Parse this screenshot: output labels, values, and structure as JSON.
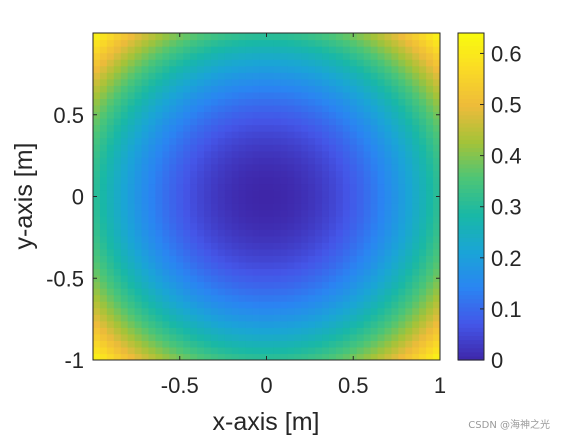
{
  "chart_data": {
    "type": "heatmap",
    "description": "radial field value = r^2 / pi where r is distance from origin",
    "formula": "(x^2 + y^2) / pi",
    "xlabel": "x-axis [m]",
    "ylabel": "y-axis [m]",
    "xlim": [
      -1,
      1
    ],
    "ylim": [
      -1,
      1
    ],
    "x_ticks": [
      -0.5,
      0,
      0.5,
      1
    ],
    "x_tick_labels": [
      "-0.5",
      "0",
      "0.5",
      "1"
    ],
    "y_ticks": [
      -1,
      -0.5,
      0,
      0.5
    ],
    "y_tick_labels": [
      "-1",
      "-0.5",
      "0",
      "0.5"
    ],
    "colorbar": {
      "range": [
        0,
        0.64
      ],
      "ticks": [
        0,
        0.1,
        0.2,
        0.3,
        0.4,
        0.5,
        0.6
      ],
      "tick_labels": [
        "0",
        "0.1",
        "0.2",
        "0.3",
        "0.4",
        "0.5",
        "0.6"
      ]
    },
    "colormap": "parula",
    "colormap_stops": [
      "#3e26a8",
      "#4456e8",
      "#2a85f2",
      "#1aa5d6",
      "#19b8a6",
      "#4cc577",
      "#a3c339",
      "#eebb3a",
      "#fada26",
      "#f9fb0e"
    ],
    "grid": false
  },
  "watermark": "CSDN @海神之光"
}
